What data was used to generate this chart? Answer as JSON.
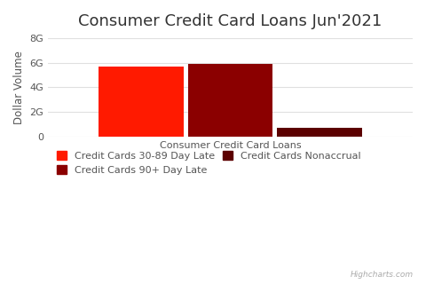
{
  "title": "Consumer Credit Card Loans Jun'2021",
  "xlabel": "Consumer Credit Card Loans",
  "ylabel": "Dollar Volume",
  "bars": [
    {
      "label": "Credit Cards 30-89 Day Late",
      "value": 5.72,
      "color": "#FF1A00"
    },
    {
      "label": "Credit Cards 90+ Day Late",
      "value": 5.88,
      "color": "#8B0000"
    },
    {
      "label": "Credit Cards Nonaccrual",
      "value": 0.72,
      "color": "#5C0000"
    }
  ],
  "ylim": [
    0,
    8
  ],
  "yticks": [
    0,
    2,
    4,
    6,
    8
  ],
  "ytick_labels": [
    "0",
    "2G",
    "4G",
    "6G",
    "8G"
  ],
  "background_color": "#ffffff",
  "grid_color": "#e0e0e0",
  "title_fontsize": 13,
  "axis_label_fontsize": 8.5,
  "tick_fontsize": 8,
  "legend_fontsize": 8,
  "watermark": "Highcharts.com"
}
